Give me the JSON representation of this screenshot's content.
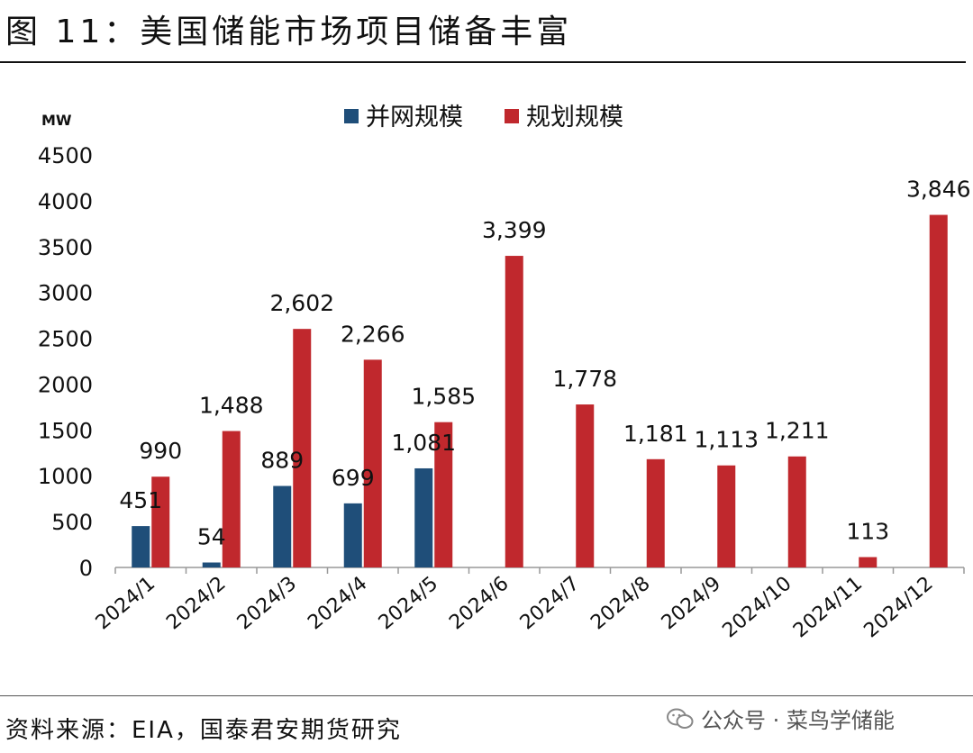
{
  "figure": {
    "title": "图 11：美国储能市场项目储备丰富",
    "source": "资料来源：EIA，国泰君安期货研究",
    "wechat": "公众号 · 菜鸟学储能"
  },
  "chart_data": {
    "type": "bar",
    "unit_label": "MW",
    "categories": [
      "2024/1",
      "2024/2",
      "2024/3",
      "2024/4",
      "2024/5",
      "2024/6",
      "2024/7",
      "2024/8",
      "2024/9",
      "2024/10",
      "2024/11",
      "2024/12"
    ],
    "series": [
      {
        "name": "并网规模",
        "color": "#1f4e79",
        "values": [
          451,
          54,
          889,
          699,
          1081,
          null,
          null,
          null,
          null,
          null,
          null,
          null
        ]
      },
      {
        "name": "规划规模",
        "color": "#c0282d",
        "values": [
          990,
          1488,
          2602,
          2266,
          1585,
          3399,
          1778,
          1181,
          1113,
          1211,
          113,
          3846
        ]
      }
    ],
    "series_labels": [
      [
        "451",
        "54",
        "889",
        "699",
        "1,081",
        "",
        "",
        "",
        "",
        "",
        "",
        ""
      ],
      [
        "990",
        "1,488",
        "2,602",
        "2,266",
        "1,585",
        "3,399",
        "1,778",
        "1,181",
        "1,113",
        "1,211",
        "113",
        "3,846"
      ]
    ],
    "yticks": [
      "0",
      "500",
      "1000",
      "1500",
      "2000",
      "2500",
      "3000",
      "3500",
      "4000",
      "4500"
    ],
    "ylim": [
      0,
      4500
    ],
    "legend_position": "top-center",
    "grid": false
  }
}
